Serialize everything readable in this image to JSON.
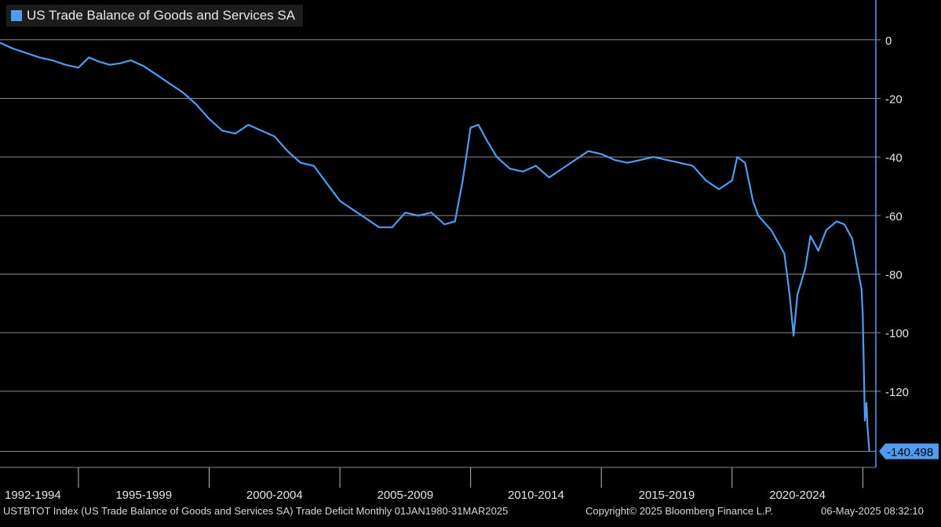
{
  "colors": {
    "background": "#000000",
    "series": "#4f9cf0",
    "grid": "#8a8a8a",
    "axis_text": "#e6e6e6",
    "value_tag_bg": "#4f9cf0",
    "value_tag_text": "#000000"
  },
  "legend": {
    "label": "US Trade Balance of Goods and Services SA",
    "position": "top-left"
  },
  "footer": {
    "description": "USTBTOT Index (US Trade Balance of Goods and Services SA) Trade Deficit  Monthly 01JAN1980-31MAR2025",
    "copyright": "Copyright© 2025 Bloomberg Finance L.P.",
    "timestamp": "06-May-2025 08:32:10"
  },
  "chart_data": {
    "type": "line",
    "title": "",
    "xlabel": "",
    "ylabel": "",
    "x_tick_labels": [
      "1992-1994",
      "1995-1999",
      "2000-2004",
      "2005-2009",
      "2010-2014",
      "2015-2019",
      "2020-2024"
    ],
    "x_tick_boundaries": [
      1995,
      2000,
      2005,
      2010,
      2015,
      2020,
      2025
    ],
    "xlim": [
      1992.0,
      2025.5
    ],
    "y_ticks": [
      0,
      -20,
      -40,
      -60,
      -80,
      -100,
      -120
    ],
    "ylim": [
      -146,
      12
    ],
    "grid": true,
    "last_value_label": "-140.498",
    "series": [
      {
        "name": "US Trade Balance of Goods and Services SA",
        "points": [
          [
            1992.0,
            -1.0
          ],
          [
            1992.5,
            -3.0
          ],
          [
            1993.0,
            -4.5
          ],
          [
            1993.5,
            -6.0
          ],
          [
            1994.0,
            -7.0
          ],
          [
            1994.5,
            -8.5
          ],
          [
            1995.0,
            -9.5
          ],
          [
            1995.4,
            -6.0
          ],
          [
            1995.8,
            -7.5
          ],
          [
            1996.2,
            -8.5
          ],
          [
            1996.6,
            -8.0
          ],
          [
            1997.0,
            -7.0
          ],
          [
            1997.5,
            -9.0
          ],
          [
            1998.0,
            -12.0
          ],
          [
            1998.5,
            -15.0
          ],
          [
            1999.0,
            -18.0
          ],
          [
            1999.5,
            -22.0
          ],
          [
            2000.0,
            -27.0
          ],
          [
            2000.5,
            -31.0
          ],
          [
            2001.0,
            -32.0
          ],
          [
            2001.5,
            -29.0
          ],
          [
            2002.0,
            -31.0
          ],
          [
            2002.5,
            -33.0
          ],
          [
            2003.0,
            -38.0
          ],
          [
            2003.5,
            -42.0
          ],
          [
            2004.0,
            -43.0
          ],
          [
            2004.5,
            -49.0
          ],
          [
            2005.0,
            -55.0
          ],
          [
            2005.5,
            -58.0
          ],
          [
            2006.0,
            -61.0
          ],
          [
            2006.5,
            -64.0
          ],
          [
            2007.0,
            -64.0
          ],
          [
            2007.5,
            -59.0
          ],
          [
            2008.0,
            -60.0
          ],
          [
            2008.5,
            -59.0
          ],
          [
            2009.0,
            -63.0
          ],
          [
            2009.4,
            -62.0
          ],
          [
            2009.7,
            -48.0
          ],
          [
            2010.0,
            -30.0
          ],
          [
            2010.3,
            -29.0
          ],
          [
            2010.6,
            -34.0
          ],
          [
            2011.0,
            -40.0
          ],
          [
            2011.5,
            -44.0
          ],
          [
            2012.0,
            -45.0
          ],
          [
            2012.5,
            -43.0
          ],
          [
            2013.0,
            -47.0
          ],
          [
            2013.5,
            -44.0
          ],
          [
            2014.0,
            -41.0
          ],
          [
            2014.5,
            -38.0
          ],
          [
            2015.0,
            -39.0
          ],
          [
            2015.5,
            -41.0
          ],
          [
            2016.0,
            -42.0
          ],
          [
            2016.5,
            -41.0
          ],
          [
            2017.0,
            -40.0
          ],
          [
            2017.5,
            -41.0
          ],
          [
            2018.0,
            -42.0
          ],
          [
            2018.5,
            -43.0
          ],
          [
            2019.0,
            -48.0
          ],
          [
            2019.5,
            -51.0
          ],
          [
            2020.0,
            -48.0
          ],
          [
            2020.2,
            -40.0
          ],
          [
            2020.5,
            -42.0
          ],
          [
            2020.8,
            -55.0
          ],
          [
            2021.0,
            -60.0
          ],
          [
            2021.5,
            -65.0
          ],
          [
            2022.0,
            -73.0
          ],
          [
            2022.2,
            -87.0
          ],
          [
            2022.35,
            -101.0
          ],
          [
            2022.5,
            -87.0
          ],
          [
            2022.8,
            -78.0
          ],
          [
            2023.0,
            -67.0
          ],
          [
            2023.3,
            -72.0
          ],
          [
            2023.6,
            -65.0
          ],
          [
            2024.0,
            -62.0
          ],
          [
            2024.3,
            -63.0
          ],
          [
            2024.6,
            -68.0
          ],
          [
            2024.8,
            -78.0
          ],
          [
            2024.95,
            -85.0
          ],
          [
            2025.0,
            -94.0
          ],
          [
            2025.08,
            -130.0
          ],
          [
            2025.14,
            -124.0
          ],
          [
            2025.18,
            -132.0
          ],
          [
            2025.25,
            -140.498
          ]
        ]
      }
    ]
  }
}
